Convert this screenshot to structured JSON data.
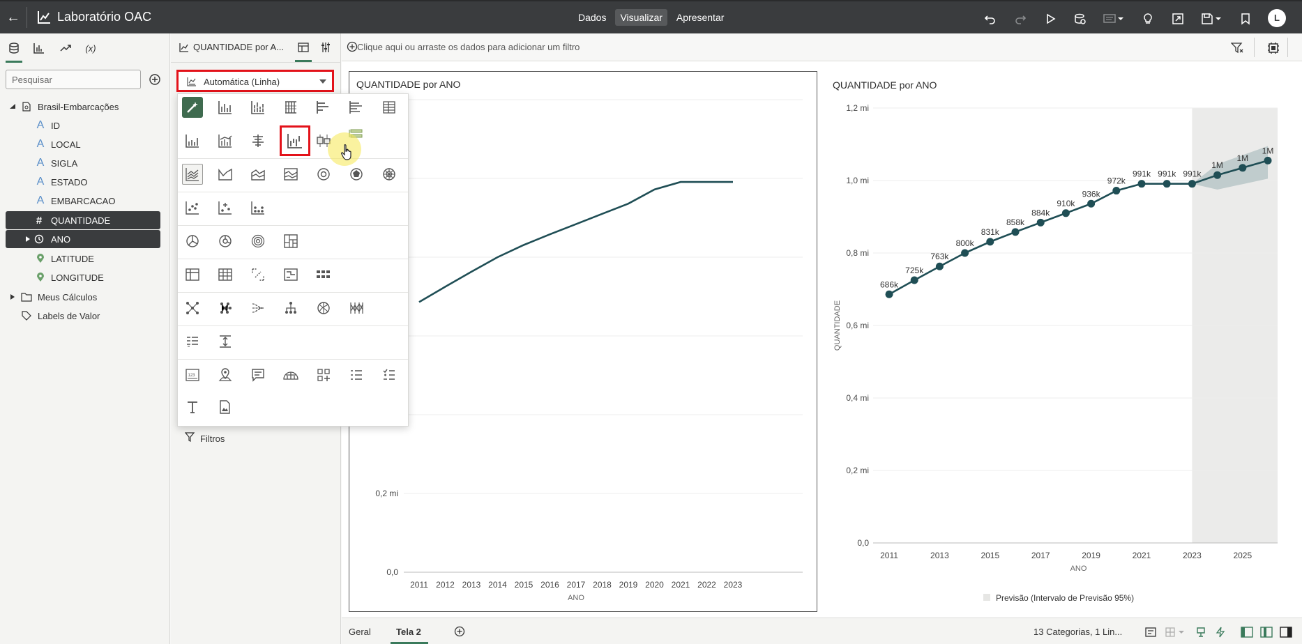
{
  "topbar": {
    "title": "Laboratório OAC",
    "modes": [
      "Dados",
      "Visualizar",
      "Apresentar"
    ],
    "active_mode": "Visualizar",
    "avatar": "L"
  },
  "left_panel": {
    "search_placeholder": "Pesquisar",
    "datasource": "Brasil-Embarcações",
    "fields": [
      {
        "label": "ID",
        "type": "A"
      },
      {
        "label": "LOCAL",
        "type": "A"
      },
      {
        "label": "SIGLA",
        "type": "A"
      },
      {
        "label": "ESTADO",
        "type": "A"
      },
      {
        "label": "EMBARCACAO",
        "type": "A"
      },
      {
        "label": "QUANTIDADE",
        "type": "#"
      },
      {
        "label": "ANO",
        "type": "time"
      },
      {
        "label": "LATITUDE",
        "type": "geo"
      },
      {
        "label": "LONGITUDE",
        "type": "geo"
      }
    ],
    "folders": [
      "Meus Cálculos",
      "Labels de Valor"
    ]
  },
  "mid_panel": {
    "title": "QUANTIDADE por A...",
    "chart_type": "Automática (Linha)",
    "filters_label": "Filtros"
  },
  "filterbar": {
    "hint": "Clique aqui ou arraste os dados para adicionar um filtro"
  },
  "chart_data": [
    {
      "type": "line",
      "title": "QUANTIDADE por ANO",
      "xlabel": "ANO",
      "ylabel": "",
      "x": [
        "2011",
        "2012",
        "2013",
        "2014",
        "2015",
        "2016",
        "2017",
        "2018",
        "2019",
        "2020",
        "2021",
        "2022",
        "2023"
      ],
      "values": [
        686000,
        725000,
        763000,
        800000,
        831000,
        858000,
        884000,
        910000,
        936000,
        972000,
        991000,
        991000,
        991000
      ],
      "y_ticks": [
        "0,0",
        "0,2 mi"
      ],
      "ylim": [
        0,
        1200000
      ],
      "grid": true
    },
    {
      "type": "line",
      "title": "QUANTIDADE por ANO",
      "xlabel": "ANO",
      "ylabel": "QUANTIDADE",
      "x": [
        "2011",
        "2012",
        "2013",
        "2014",
        "2015",
        "2016",
        "2017",
        "2018",
        "2019",
        "2020",
        "2021",
        "2022",
        "2023",
        "2024",
        "2025",
        "2026"
      ],
      "values": [
        686000,
        725000,
        763000,
        800000,
        831000,
        858000,
        884000,
        910000,
        936000,
        972000,
        991000,
        991000,
        991000,
        1015000,
        1035000,
        1055000
      ],
      "data_labels": [
        "686k",
        "725k",
        "763k",
        "800k",
        "831k",
        "858k",
        "884k",
        "910k",
        "936k",
        "972k",
        "991k",
        "991k",
        "991k",
        "1M",
        "1M",
        "1M"
      ],
      "x_ticks": [
        "2011",
        "2013",
        "2015",
        "2017",
        "2019",
        "2021",
        "2023",
        "2025"
      ],
      "y_ticks": [
        "0,0",
        "0,2 mi",
        "0,4 mi",
        "0,6 mi",
        "0,8 mi",
        "1,0 mi",
        "1,2 mi"
      ],
      "ylim": [
        0,
        1200000
      ],
      "forecast_from": "2023",
      "forecast_band": {
        "lower": [
          991000,
          975000,
          990000,
          1005000
        ],
        "upper": [
          991000,
          1045000,
          1070000,
          1095000
        ]
      },
      "legend": "Previsão (Intervalo de Previsão 95%)",
      "legend_position": "bottom",
      "grid": true
    }
  ],
  "bottombar": {
    "tabs": [
      "Geral",
      "Tela 2"
    ],
    "active_tab": "Tela 2",
    "status": "13 Categorias, 1 Lin..."
  },
  "colors": {
    "line": "#1f4e55",
    "accent": "#3a7a5b",
    "highlight": "#e3121a"
  }
}
